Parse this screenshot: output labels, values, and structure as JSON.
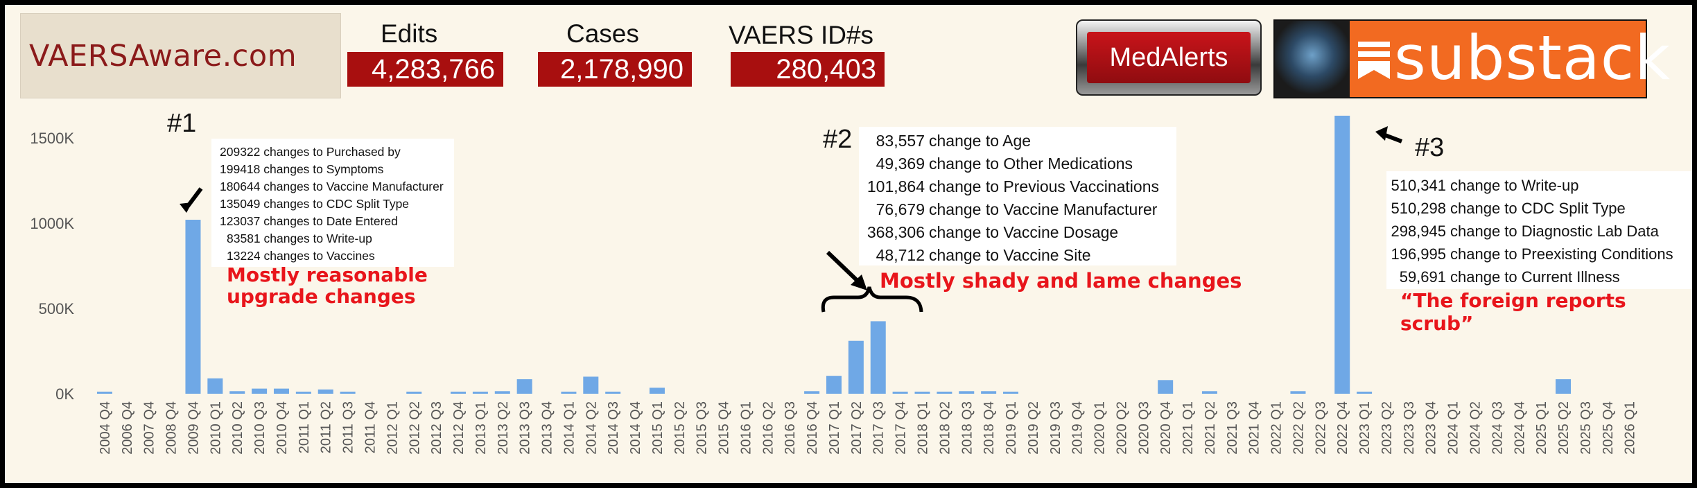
{
  "header": {
    "site_name": "VAERSAware.com",
    "edits_label": "Edits",
    "edits_value": "4,283,766",
    "cases_label": "Cases",
    "cases_value": "2,178,990",
    "ids_label": "VAERS ID#s",
    "ids_value": "280,403",
    "medalerts_label": "MedAlerts",
    "substack_label": "substack"
  },
  "colors": {
    "bar": "#6fa8e6",
    "accent_red": "#a80f0f",
    "annotation_red": "#e8151b",
    "substack_orange": "#f26a21"
  },
  "annotations": {
    "a1": {
      "tag": "#1",
      "lines": [
        "209322 changes to Purchased by",
        "199418 changes to Symptoms",
        "180644 changes to Vaccine Manufacturer",
        "135049 changes to CDC Split Type",
        "123037 changes to Date Entered",
        "83581 changes to Write-up",
        "13224 changes to Vaccines"
      ],
      "caption_line1": "Mostly reasonable",
      "caption_line2": "upgrade changes"
    },
    "a2": {
      "tag": "#2",
      "rows": [
        {
          "num": "83,557",
          "text": "change to Age"
        },
        {
          "num": "49,369",
          "text": "change to Other Medications"
        },
        {
          "num": "101,864",
          "text": "change to Previous Vaccinations"
        },
        {
          "num": "76,679",
          "text": "change to Vaccine Manufacturer"
        },
        {
          "num": "368,306",
          "text": "change to Vaccine Dosage"
        },
        {
          "num": "48,712",
          "text": "change to Vaccine Site"
        }
      ],
      "caption": "Mostly shady and lame changes"
    },
    "a3": {
      "tag": "#3",
      "rows": [
        {
          "num": "510,341",
          "text": "change to Write-up"
        },
        {
          "num": "510,298",
          "text": "change to CDC Split Type"
        },
        {
          "num": "298,945",
          "text": "change to Diagnostic Lab Data"
        },
        {
          "num": "196,995",
          "text": "change to Preexisting Conditions"
        },
        {
          "num": "59,691",
          "text": "change to Current Illness"
        }
      ],
      "caption": "“The foreign reports scrub”"
    }
  },
  "chart_data": {
    "type": "bar",
    "title": "",
    "xlabel": "",
    "ylabel": "",
    "ylim": [
      0,
      1650000
    ],
    "y_ticks": [
      0,
      500000,
      1000000,
      1500000
    ],
    "y_tick_labels": [
      "0K",
      "500K",
      "1000K",
      "1500K"
    ],
    "grid": false,
    "categories": [
      "2004 Q4",
      "2006 Q4",
      "2007 Q4",
      "2008 Q4",
      "2009 Q4",
      "2010 Q1",
      "2010 Q2",
      "2010 Q3",
      "2010 Q4",
      "2011 Q1",
      "2011 Q2",
      "2011 Q3",
      "2011 Q4",
      "2012 Q1",
      "2012 Q2",
      "2012 Q3",
      "2012 Q4",
      "2013 Q1",
      "2013 Q2",
      "2013 Q3",
      "2013 Q4",
      "2014 Q1",
      "2014 Q2",
      "2014 Q3",
      "2014 Q4",
      "2015 Q1",
      "2015 Q2",
      "2015 Q3",
      "2015 Q4",
      "2016 Q1",
      "2016 Q2",
      "2016 Q3",
      "2016 Q4",
      "2017 Q1",
      "2017 Q2",
      "2017 Q3",
      "2017 Q4",
      "2018 Q1",
      "2018 Q2",
      "2018 Q3",
      "2018 Q4",
      "2019 Q1",
      "2019 Q2",
      "2019 Q3",
      "2019 Q4",
      "2020 Q1",
      "2020 Q2",
      "2020 Q3",
      "2020 Q4",
      "2021 Q1",
      "2021 Q2",
      "2021 Q3",
      "2021 Q4",
      "2022 Q1",
      "2022 Q2",
      "2022 Q3",
      "2022 Q4",
      "2023 Q1",
      "2023 Q2",
      "2023 Q3",
      "2023 Q4",
      "2024 Q1",
      "2024 Q2",
      "2024 Q3",
      "2024 Q4",
      "2025 Q1",
      "2025 Q2",
      "2025 Q3",
      "2025 Q4",
      "2026 Q1"
    ],
    "values": [
      10000,
      0,
      0,
      0,
      1020000,
      90000,
      15000,
      30000,
      30000,
      10000,
      25000,
      10000,
      0,
      0,
      10000,
      0,
      8000,
      8000,
      15000,
      85000,
      0,
      8000,
      100000,
      10000,
      0,
      35000,
      0,
      0,
      0,
      0,
      0,
      0,
      15000,
      105000,
      310000,
      425000,
      10000,
      10000,
      10000,
      15000,
      15000,
      8000,
      0,
      0,
      0,
      0,
      0,
      0,
      80000,
      0,
      15000,
      0,
      0,
      0,
      15000,
      0,
      1630000,
      10000,
      0,
      0,
      0,
      0,
      0,
      0,
      0,
      0,
      85000,
      0,
      0,
      0
    ]
  }
}
